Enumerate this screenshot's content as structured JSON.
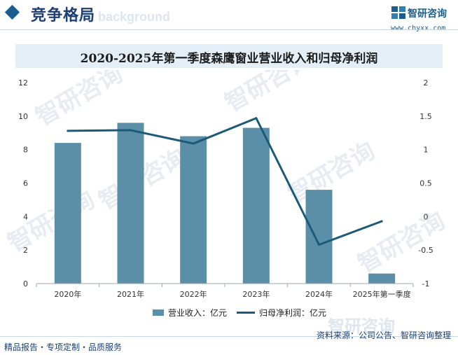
{
  "header": {
    "section_title": "竞争格局",
    "ghost_text": "ment background",
    "logo_name": "智研咨询",
    "logo_url": "www.chyxx.com"
  },
  "chart_title": "2020-2025年第一季度森鹰窗业营业收入和归母净利润",
  "chart_data": {
    "type": "bar",
    "title": "2020-2025年第一季度森鹰窗业营业收入和归母净利润",
    "categories": [
      "2020年",
      "2021年",
      "2022年",
      "2023年",
      "2024年",
      "2025年第一季度"
    ],
    "series": [
      {
        "name": "营业收入：亿元",
        "type": "bar",
        "axis": "left",
        "color": "#5b8fa8",
        "values": [
          8.4,
          9.6,
          8.8,
          9.3,
          5.6,
          0.6
        ]
      },
      {
        "name": "归母净利润：亿元",
        "type": "line",
        "axis": "right",
        "color": "#1c5a7a",
        "values": [
          1.28,
          1.29,
          1.09,
          1.47,
          -0.42,
          -0.07
        ]
      }
    ],
    "y_left": {
      "ticks": [
        "0",
        "2",
        "4",
        "6",
        "8",
        "10",
        "12"
      ],
      "lim": [
        0,
        12
      ]
    },
    "y_right": {
      "ticks": [
        "-1",
        "-0.5",
        "0",
        "0.5",
        "1",
        "1.5",
        "2"
      ],
      "lim": [
        -1,
        2
      ]
    },
    "grid": false,
    "legend_position": "bottom"
  },
  "legend": {
    "bar_label": "营业收入：亿元",
    "line_label": "归母净利润：亿元"
  },
  "watermark": {
    "text": "智研咨询"
  },
  "footer": {
    "left": "精品报告・专项定制・品质服务",
    "right": "资料来源：公司公告、智研咨询整理"
  }
}
